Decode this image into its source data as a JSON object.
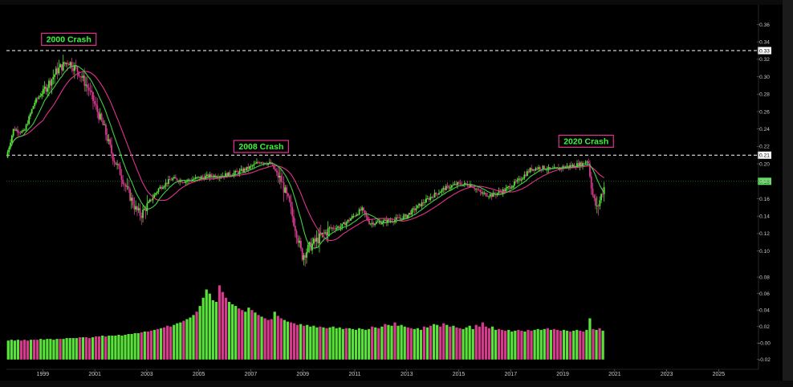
{
  "chart_data": {
    "type": "candlestick+volume",
    "x_ticks": [
      "1999",
      "2001",
      "2003",
      "2005",
      "2007",
      "2009",
      "2011",
      "2013",
      "2015",
      "2017",
      "2019",
      "2021",
      "2023",
      "2025"
    ],
    "x_range": [
      1997.6,
      2026.5
    ],
    "price_axis": {
      "ticks": [
        "0.36",
        "0.34",
        "0.32",
        "0.30",
        "0.28",
        "0.26",
        "0.24",
        "0.22",
        "0.20",
        "0.18",
        "0.16",
        "0.14",
        "0.12",
        "0.10"
      ],
      "ylim": [
        0.084,
        0.377
      ]
    },
    "volume_axis": {
      "ticks": [
        "0.08",
        "0.06",
        "0.04",
        "0.02",
        "-0.00",
        "-0.02"
      ],
      "ylim": [
        -0.028,
        0.085
      ]
    },
    "reference_lines": [
      {
        "value": 0.33,
        "label": "0.33",
        "style": "dashed"
      },
      {
        "value": 0.21,
        "label": "0.21",
        "style": "dashed"
      },
      {
        "value": 0.18,
        "label": "0.18",
        "style": "dotted-green"
      }
    ],
    "annotations": [
      {
        "text": "2000 Crash",
        "x": 2000.0,
        "y": 0.343
      },
      {
        "text": "2008 Crash",
        "x": 2007.4,
        "y": 0.22
      },
      {
        "text": "2020 Crash",
        "x": 2019.9,
        "y": 0.226
      }
    ],
    "price_path": [
      [
        1997.6,
        0.205
      ],
      [
        1997.9,
        0.24
      ],
      [
        1998.3,
        0.236
      ],
      [
        1998.7,
        0.27
      ],
      [
        1999.2,
        0.29
      ],
      [
        1999.6,
        0.308
      ],
      [
        2000.0,
        0.318
      ],
      [
        2000.4,
        0.306
      ],
      [
        2000.8,
        0.285
      ],
      [
        2001.1,
        0.262
      ],
      [
        2001.4,
        0.24
      ],
      [
        2001.7,
        0.21
      ],
      [
        2002.0,
        0.19
      ],
      [
        2002.3,
        0.168
      ],
      [
        2002.6,
        0.148
      ],
      [
        2002.8,
        0.141
      ],
      [
        2003.1,
        0.155
      ],
      [
        2003.5,
        0.172
      ],
      [
        2004.0,
        0.183
      ],
      [
        2004.5,
        0.18
      ],
      [
        2005.0,
        0.184
      ],
      [
        2005.5,
        0.186
      ],
      [
        2006.0,
        0.187
      ],
      [
        2006.5,
        0.19
      ],
      [
        2007.0,
        0.196
      ],
      [
        2007.4,
        0.203
      ],
      [
        2007.8,
        0.2
      ],
      [
        2008.2,
        0.18
      ],
      [
        2008.5,
        0.155
      ],
      [
        2008.8,
        0.12
      ],
      [
        2009.0,
        0.094
      ],
      [
        2009.3,
        0.105
      ],
      [
        2009.7,
        0.116
      ],
      [
        2010.1,
        0.126
      ],
      [
        2010.5,
        0.128
      ],
      [
        2010.9,
        0.138
      ],
      [
        2011.3,
        0.148
      ],
      [
        2011.6,
        0.132
      ],
      [
        2012.0,
        0.133
      ],
      [
        2012.6,
        0.136
      ],
      [
        2013.0,
        0.14
      ],
      [
        2013.5,
        0.152
      ],
      [
        2014.0,
        0.163
      ],
      [
        2014.5,
        0.172
      ],
      [
        2015.0,
        0.177
      ],
      [
        2015.5,
        0.176
      ],
      [
        2015.9,
        0.166
      ],
      [
        2016.3,
        0.164
      ],
      [
        2016.8,
        0.17
      ],
      [
        2017.3,
        0.18
      ],
      [
        2017.8,
        0.194
      ],
      [
        2018.2,
        0.196
      ],
      [
        2018.6,
        0.193
      ],
      [
        2019.0,
        0.196
      ],
      [
        2019.4,
        0.198
      ],
      [
        2019.8,
        0.2
      ],
      [
        2020.0,
        0.205
      ],
      [
        2020.2,
        0.16
      ],
      [
        2020.35,
        0.148
      ],
      [
        2020.6,
        0.173
      ]
    ],
    "volume_values": [
      0.003,
      0.004,
      0.003,
      0.004,
      0.003,
      0.004,
      0.003,
      0.004,
      0.004,
      0.004,
      0.005,
      0.004,
      0.005,
      0.005,
      0.004,
      0.005,
      0.005,
      0.005,
      0.006,
      0.006,
      0.006,
      0.006,
      0.007,
      0.007,
      0.007,
      0.006,
      0.007,
      0.008,
      0.008,
      0.009,
      0.008,
      0.009,
      0.009,
      0.009,
      0.01,
      0.009,
      0.01,
      0.011,
      0.011,
      0.012,
      0.012,
      0.013,
      0.014,
      0.014,
      0.015,
      0.016,
      0.017,
      0.018,
      0.019,
      0.021,
      0.02,
      0.022,
      0.024,
      0.025,
      0.027,
      0.029,
      0.031,
      0.034,
      0.038,
      0.045,
      0.055,
      0.065,
      0.06,
      0.052,
      0.05,
      0.07,
      0.062,
      0.055,
      0.05,
      0.047,
      0.045,
      0.042,
      0.04,
      0.038,
      0.043,
      0.04,
      0.037,
      0.034,
      0.032,
      0.03,
      0.028,
      0.029,
      0.038,
      0.033,
      0.03,
      0.028,
      0.026,
      0.025,
      0.024,
      0.022,
      0.023,
      0.021,
      0.022,
      0.02,
      0.021,
      0.019,
      0.02,
      0.019,
      0.018,
      0.019,
      0.02,
      0.018,
      0.019,
      0.017,
      0.018,
      0.018,
      0.017,
      0.016,
      0.018,
      0.017,
      0.016,
      0.017,
      0.02,
      0.019,
      0.018,
      0.02,
      0.023,
      0.022,
      0.021,
      0.025,
      0.021,
      0.022,
      0.02,
      0.019,
      0.018,
      0.017,
      0.018,
      0.016,
      0.02,
      0.019,
      0.021,
      0.023,
      0.022,
      0.02,
      0.024,
      0.022,
      0.02,
      0.021,
      0.019,
      0.018,
      0.017,
      0.019,
      0.021,
      0.017,
      0.022,
      0.02,
      0.025,
      0.02,
      0.018,
      0.02,
      0.016,
      0.017,
      0.016,
      0.015,
      0.016,
      0.014,
      0.015,
      0.016,
      0.015,
      0.014,
      0.016,
      0.015,
      0.016,
      0.017,
      0.016,
      0.017,
      0.018,
      0.016,
      0.017,
      0.016,
      0.015,
      0.016,
      0.015,
      0.014,
      0.015,
      0.016,
      0.015,
      0.014,
      0.016,
      0.03,
      0.017,
      0.016,
      0.018,
      0.015
    ],
    "series": [
      {
        "name": "",
        "color": "#3fd23f"
      },
      {
        "name": "",
        "color": "#e0338a"
      }
    ],
    "up_color": "#58e23a",
    "down_color": "#d63a8c"
  }
}
